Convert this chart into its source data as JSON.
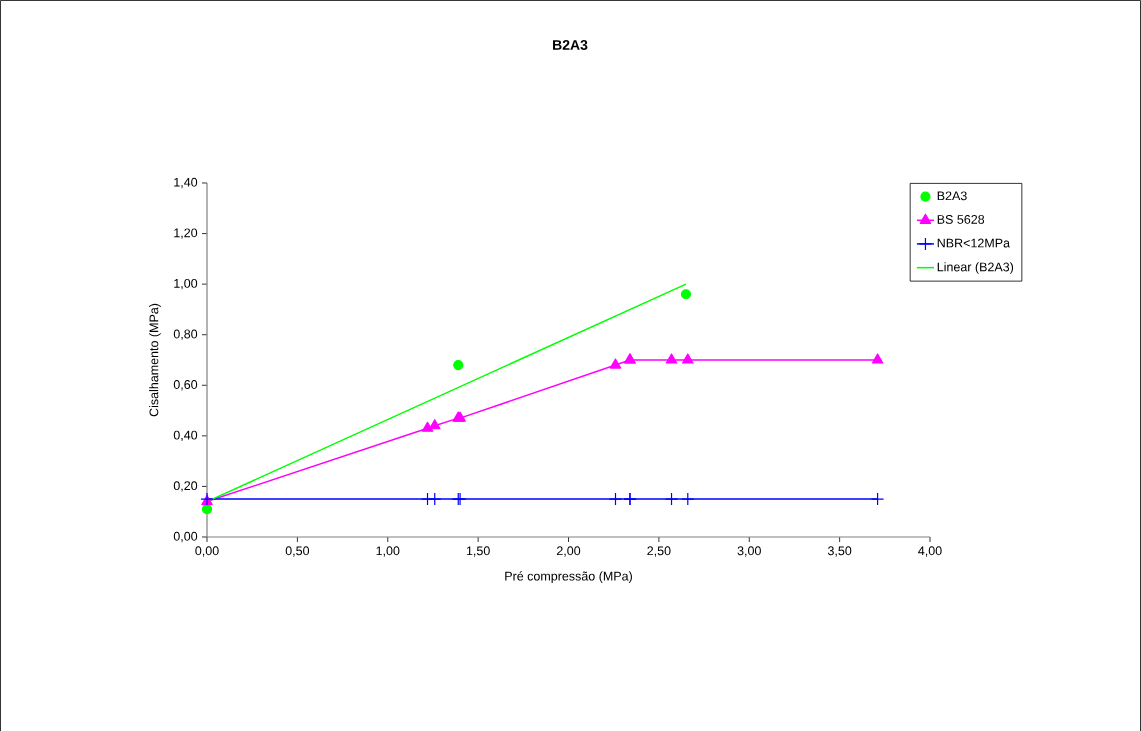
{
  "chart_data": {
    "type": "scatter",
    "title": "B2A3",
    "xlabel": "Pré compressão (MPa)",
    "ylabel": "Cisalhamento (MPa)",
    "xlim": [
      0,
      4
    ],
    "ylim": [
      0,
      1.4
    ],
    "xticks": [
      {
        "value": 0,
        "label": "0,00"
      },
      {
        "value": 0.5,
        "label": "0,50"
      },
      {
        "value": 1,
        "label": "1,00"
      },
      {
        "value": 1.5,
        "label": "1,50"
      },
      {
        "value": 2,
        "label": "2,00"
      },
      {
        "value": 2.5,
        "label": "2,50"
      },
      {
        "value": 3,
        "label": "3,00"
      },
      {
        "value": 3.5,
        "label": "3,50"
      },
      {
        "value": 4,
        "label": "4,00"
      }
    ],
    "yticks": [
      {
        "value": 0,
        "label": "0,00"
      },
      {
        "value": 0.2,
        "label": "0,20"
      },
      {
        "value": 0.4,
        "label": "0,40"
      },
      {
        "value": 0.6,
        "label": "0,60"
      },
      {
        "value": 0.8,
        "label": "0,80"
      },
      {
        "value": 1,
        "label": "1,00"
      },
      {
        "value": 1.2,
        "label": "1,20"
      },
      {
        "value": 1.4,
        "label": "1,40"
      }
    ],
    "grid": false,
    "legend": "right",
    "series": [
      {
        "name": "B2A3",
        "type": "scatter",
        "color": "#00ff00",
        "marker": "circle",
        "x": [
          0,
          1.39,
          2.65
        ],
        "values": [
          0.11,
          0.68,
          0.96
        ]
      },
      {
        "name": "BS 5628",
        "type": "line",
        "color": "#ff00ff",
        "marker": "triangle",
        "x": [
          0,
          1.22,
          1.26,
          1.39,
          1.4,
          2.26,
          2.34,
          2.34,
          2.57,
          2.66,
          3.71
        ],
        "values": [
          0.14,
          0.43,
          0.44,
          0.47,
          0.47,
          0.68,
          0.7,
          0.7,
          0.7,
          0.7,
          0.7
        ]
      },
      {
        "name": "NBR<12MPa",
        "type": "line",
        "color": "#0000ff",
        "marker": "cross",
        "x": [
          0,
          1.22,
          1.26,
          1.39,
          1.4,
          2.26,
          2.34,
          2.34,
          2.57,
          2.66,
          3.71
        ],
        "values": [
          0.15,
          0.15,
          0.15,
          0.15,
          0.15,
          0.15,
          0.15,
          0.15,
          0.15,
          0.15,
          0.15
        ]
      },
      {
        "name": "Linear (B2A3)",
        "type": "line",
        "color": "#00ff00",
        "marker": "none",
        "x": [
          0,
          2.65
        ],
        "values": [
          0.14,
          1.0
        ]
      }
    ]
  }
}
